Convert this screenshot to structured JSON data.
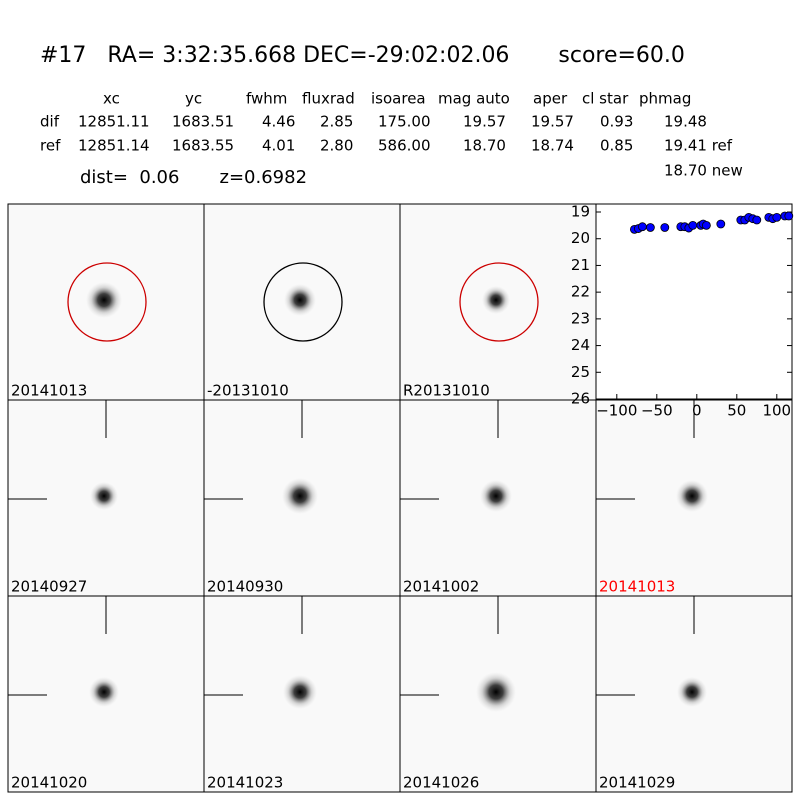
{
  "header": {
    "title": "#17   RA= 3:32:35.668 DEC=-29:02:02.06       score=60.0",
    "dist": "dist=  0.06       z=0.6982"
  },
  "table": {
    "columns": [
      "xc",
      "yc",
      "fwhm",
      "fluxrad",
      "isoarea",
      "mag auto",
      "aper",
      "cl star",
      "phmag"
    ],
    "rows": [
      [
        "dif",
        "12851.11",
        "1683.51",
        "4.46",
        "2.85",
        "175.00",
        "19.57",
        "19.57",
        "0.93",
        "19.48"
      ],
      [
        "ref",
        "12851.14",
        "1683.55",
        "4.01",
        "2.80",
        "586.00",
        "18.70",
        "18.74",
        "0.85",
        "19.41 ref"
      ]
    ],
    "note": "18.70 new"
  },
  "stamps": [
    {
      "label": "20141013",
      "circle": "#cc0000"
    },
    {
      "label": "-20131010",
      "circle": "#000000"
    },
    {
      "label": "R20131010",
      "circle": "#cc0000"
    },
    {
      "label": "20140927",
      "crosshair": true
    },
    {
      "label": "20140930",
      "crosshair": true
    },
    {
      "label": "20141002",
      "crosshair": true
    },
    {
      "label": "20141013",
      "crosshair": true,
      "label_color": "#ff0000"
    },
    {
      "label": "20141020",
      "crosshair": true
    },
    {
      "label": "20141023",
      "crosshair": true
    },
    {
      "label": "20141026",
      "crosshair": true
    },
    {
      "label": "20141029",
      "crosshair": true
    }
  ],
  "chart_data": {
    "type": "scatter",
    "x": [
      -78,
      -73,
      -68,
      -58,
      -40,
      -20,
      -15,
      -10,
      -5,
      5,
      8,
      12,
      30,
      55,
      60,
      65,
      70,
      75,
      90,
      95,
      100,
      110,
      115
    ],
    "values": [
      19.65,
      19.62,
      19.55,
      19.58,
      19.58,
      19.55,
      19.55,
      19.6,
      19.5,
      19.5,
      19.45,
      19.5,
      19.45,
      19.3,
      19.3,
      19.2,
      19.25,
      19.3,
      19.2,
      19.25,
      19.2,
      19.15,
      19.15
    ],
    "color": "#0000ff",
    "xlim": [
      -126,
      119
    ],
    "ylim": [
      26,
      18.7
    ],
    "xticks": [
      {
        "value": -100,
        "label": "−100"
      },
      {
        "value": -50,
        "label": "−50"
      },
      0,
      50,
      100
    ],
    "yticks": [
      19,
      20,
      21,
      22,
      23,
      24,
      25,
      26
    ]
  }
}
